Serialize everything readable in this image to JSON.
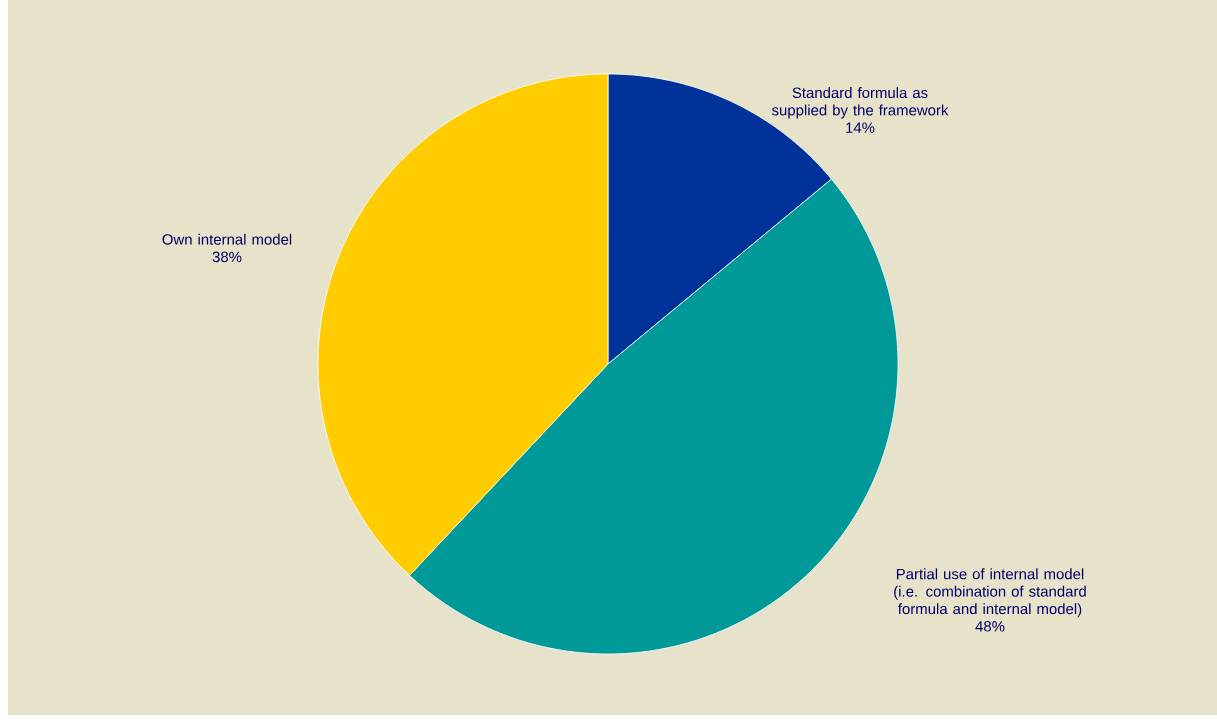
{
  "chart_data": {
    "type": "pie",
    "categories": [
      "Standard formula as supplied by the framework",
      "Partial use of internal model (i.e. combination of standard formula and internal model)",
      "Own internal model"
    ],
    "values": [
      14,
      48,
      38
    ],
    "value_labels": [
      "14%",
      "48%",
      "38%"
    ],
    "colors": [
      "#003399",
      "#009999",
      "#ffcc00"
    ]
  }
}
